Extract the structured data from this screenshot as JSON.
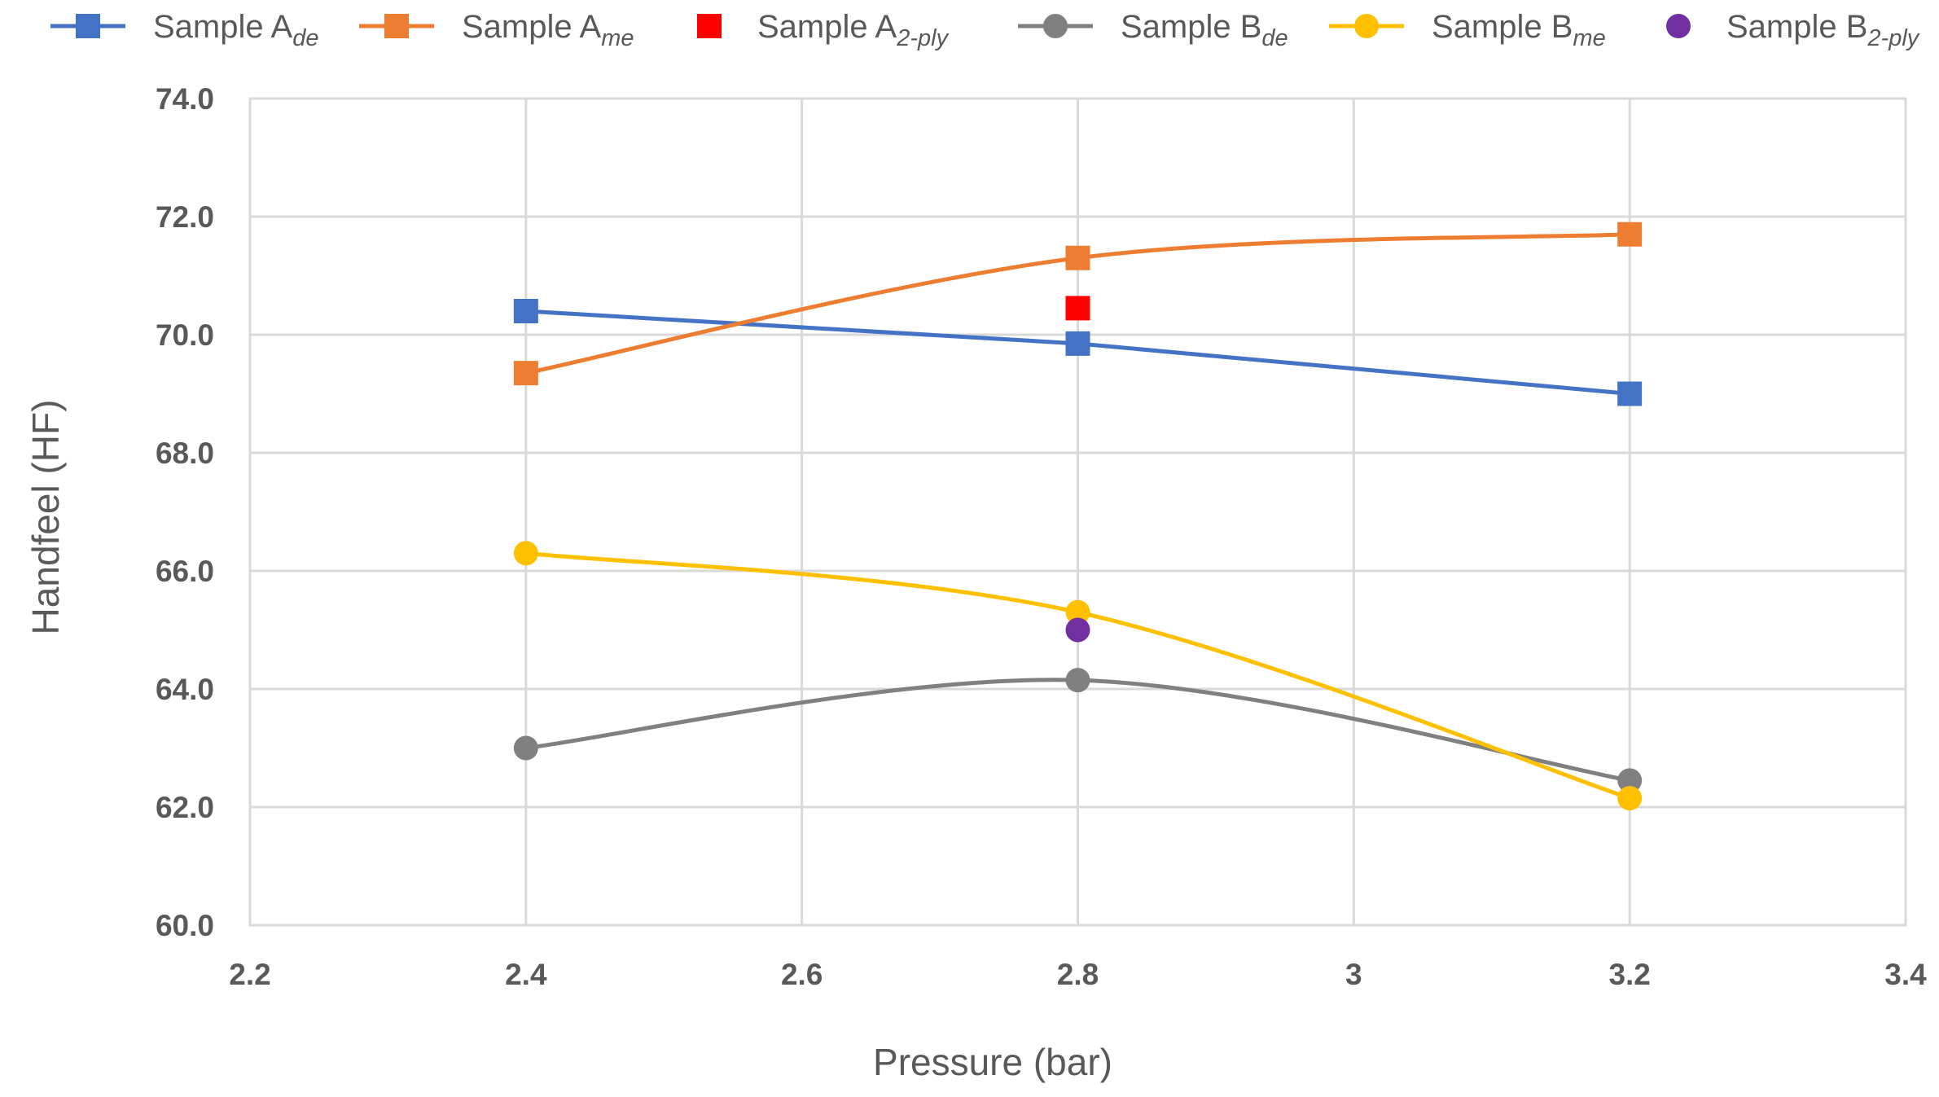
{
  "chart_data": {
    "type": "line",
    "title": "",
    "xlabel": "Pressure (bar)",
    "ylabel": "Handfeel (HF)",
    "xlim": [
      2.2,
      3.4
    ],
    "ylim": [
      60.0,
      74.0
    ],
    "x_ticks": [
      "2.2",
      "2.4",
      "2.6",
      "2.8",
      "3",
      "3.2",
      "3.4"
    ],
    "y_ticks": [
      "60.0",
      "62.0",
      "64.0",
      "66.0",
      "68.0",
      "70.0",
      "72.0",
      "74.0"
    ],
    "grid": true,
    "legend_position": "top",
    "series": [
      {
        "name": "Sample A",
        "subscript": "de",
        "color": "#4472C4",
        "marker": "square",
        "line": "straight",
        "x": [
          2.4,
          2.8,
          3.2
        ],
        "y": [
          70.4,
          69.85,
          69.0
        ]
      },
      {
        "name": "Sample A",
        "subscript": "me",
        "color": "#ED7D31",
        "marker": "square",
        "line": "smooth",
        "x": [
          2.4,
          2.8,
          3.2
        ],
        "y": [
          69.35,
          71.3,
          71.7
        ]
      },
      {
        "name": "Sample A",
        "subscript": "2-ply",
        "color": "#FF0000",
        "marker": "square",
        "line": "none",
        "x": [
          2.8
        ],
        "y": [
          70.45
        ]
      },
      {
        "name": "Sample B",
        "subscript": "de",
        "color": "#808080",
        "marker": "circle",
        "line": "smooth",
        "x": [
          2.4,
          2.8,
          3.2
        ],
        "y": [
          63.0,
          64.15,
          62.45
        ]
      },
      {
        "name": "Sample B",
        "subscript": "me",
        "color": "#FFC000",
        "marker": "circle",
        "line": "smooth",
        "x": [
          2.4,
          2.8,
          3.2
        ],
        "y": [
          66.3,
          65.3,
          62.15
        ]
      },
      {
        "name": "Sample B",
        "subscript": "2-ply",
        "color": "#7030A0",
        "marker": "circle",
        "line": "none",
        "x": [
          2.8
        ],
        "y": [
          65.0
        ]
      }
    ]
  }
}
